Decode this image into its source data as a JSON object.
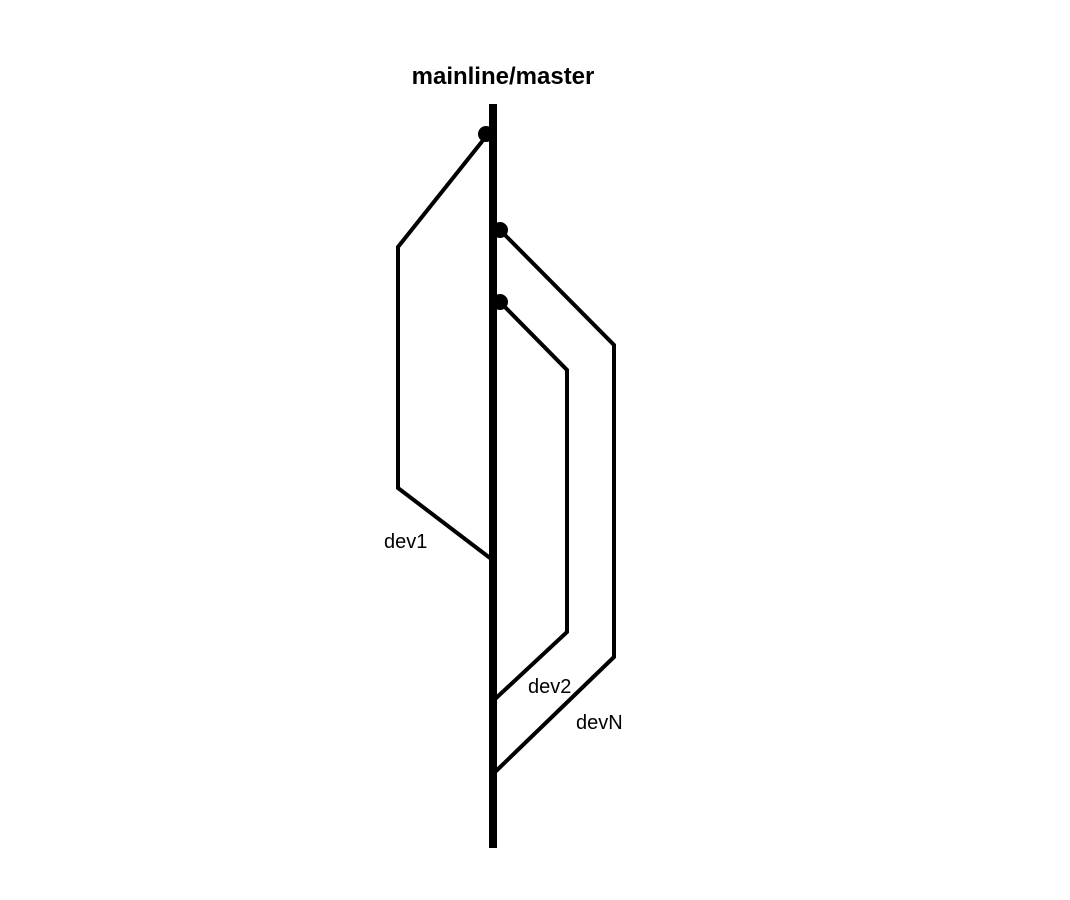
{
  "trunk": {
    "label": "mainline/master"
  },
  "branches": [
    {
      "label": "dev1"
    },
    {
      "label": "dev2"
    },
    {
      "label": "devN"
    }
  ],
  "colors": {
    "line": "#000000",
    "background": "#ffffff"
  }
}
